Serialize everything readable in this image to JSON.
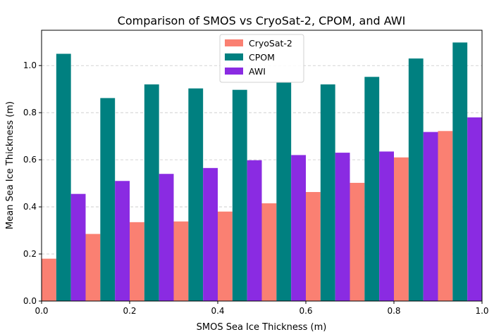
{
  "chart_data": {
    "type": "bar",
    "title": "Comparison of SMOS vs CryoSat-2, CPOM, and AWI",
    "xlabel": "SMOS Sea Ice Thickness (m)",
    "ylabel": "Mean Sea Ice Thickness (m)",
    "xlim": [
      0,
      1.0
    ],
    "ylim": [
      0,
      1.15
    ],
    "xticks": [
      "0.0",
      "0.2",
      "0.4",
      "0.6",
      "0.8",
      "1.0"
    ],
    "yticks": [
      "0.0",
      "0.2",
      "0.4",
      "0.6",
      "0.8",
      "1.0"
    ],
    "grid": "y-dashed",
    "legend_position": "top-center",
    "x": [
      0.05,
      0.15,
      0.25,
      0.35,
      0.45,
      0.55,
      0.65,
      0.75,
      0.85,
      0.95
    ],
    "series": [
      {
        "name": "CryoSat-2",
        "color": "#fa8072",
        "values": [
          0.18,
          0.285,
          0.335,
          0.338,
          0.38,
          0.415,
          0.463,
          0.502,
          0.61,
          0.722
        ]
      },
      {
        "name": "CPOM",
        "color": "#008080",
        "values": [
          1.05,
          0.862,
          0.92,
          0.903,
          0.897,
          0.93,
          0.92,
          0.952,
          1.03,
          1.098
        ]
      },
      {
        "name": "AWI",
        "color": "#8a2be2",
        "values": [
          0.455,
          0.51,
          0.54,
          0.565,
          0.598,
          0.62,
          0.63,
          0.635,
          0.718,
          0.78
        ]
      }
    ]
  }
}
